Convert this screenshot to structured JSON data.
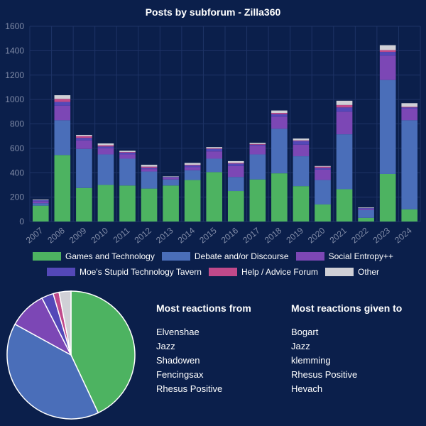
{
  "chart_data": [
    {
      "type": "bar",
      "stacked": true,
      "title": "Posts by subforum - Zilla360",
      "categories": [
        "2007",
        "2008",
        "2009",
        "2010",
        "2011",
        "2012",
        "2013",
        "2014",
        "2015",
        "2016",
        "2017",
        "2018",
        "2019",
        "2020",
        "2021",
        "2022",
        "2023",
        "2024"
      ],
      "ylim": [
        0,
        1600
      ],
      "yticks": [
        0,
        200,
        400,
        600,
        800,
        1000,
        1200,
        1400,
        1600
      ],
      "grid": true,
      "legend_position": "bottom",
      "series": [
        {
          "name": "Games and Technology",
          "color": "#4db361",
          "values": [
            130,
            545,
            275,
            300,
            295,
            270,
            295,
            340,
            405,
            250,
            345,
            395,
            290,
            140,
            265,
            30,
            390,
            100
          ]
        },
        {
          "name": "Debate and/or Discourse",
          "color": "#4a6eb9",
          "values": [
            20,
            285,
            320,
            250,
            220,
            140,
            50,
            80,
            110,
            115,
            205,
            365,
            245,
            200,
            450,
            65,
            770,
            730
          ]
        },
        {
          "name": "Social Entropy++",
          "color": "#7c47b5",
          "values": [
            15,
            120,
            70,
            50,
            35,
            20,
            15,
            25,
            60,
            90,
            70,
            100,
            95,
            85,
            185,
            10,
            200,
            95
          ]
        },
        {
          "name": "Moe's Stupid Technology Tavern",
          "color": "#5448b8",
          "values": [
            10,
            30,
            20,
            15,
            15,
            10,
            5,
            15,
            20,
            20,
            10,
            20,
            30,
            15,
            35,
            5,
            30,
            10
          ]
        },
        {
          "name": "Help / Advice Forum",
          "color": "#c0498a",
          "values": [
            0,
            25,
            15,
            10,
            5,
            10,
            0,
            5,
            5,
            5,
            5,
            10,
            5,
            10,
            20,
            0,
            15,
            5
          ]
        },
        {
          "name": "Other",
          "color": "#d0d0d6",
          "values": [
            5,
            30,
            10,
            15,
            10,
            15,
            5,
            15,
            10,
            15,
            10,
            20,
            15,
            5,
            35,
            5,
            40,
            30
          ]
        }
      ]
    },
    {
      "type": "pie",
      "slices": [
        {
          "name": "Games and Technology",
          "value": 43,
          "color": "#4db361"
        },
        {
          "name": "Debate and/or Discourse",
          "value": 40,
          "color": "#4a6eb9"
        },
        {
          "name": "Social Entropy++",
          "value": 9.5,
          "color": "#7c47b5"
        },
        {
          "name": "Moe's Stupid Technology Tavern",
          "value": 3,
          "color": "#5448b8"
        },
        {
          "name": "Help / Advice Forum",
          "value": 1.5,
          "color": "#c0498a"
        },
        {
          "name": "Other",
          "value": 3,
          "color": "#d0d0d6"
        }
      ]
    }
  ],
  "reactions_from": {
    "heading": "Most reactions from",
    "names": [
      "Elvenshae",
      "Jazz",
      "Shadowen",
      "Fencingsax",
      "Rhesus Positive"
    ]
  },
  "reactions_to": {
    "heading": "Most reactions given to",
    "names": [
      "Bogart",
      "Jazz",
      "klemming",
      "Rhesus Positive",
      "Hevach"
    ]
  },
  "colors": {
    "background": "#0b1f4b",
    "grid": "#1e3366",
    "tick_text": "#7f8aa6"
  }
}
